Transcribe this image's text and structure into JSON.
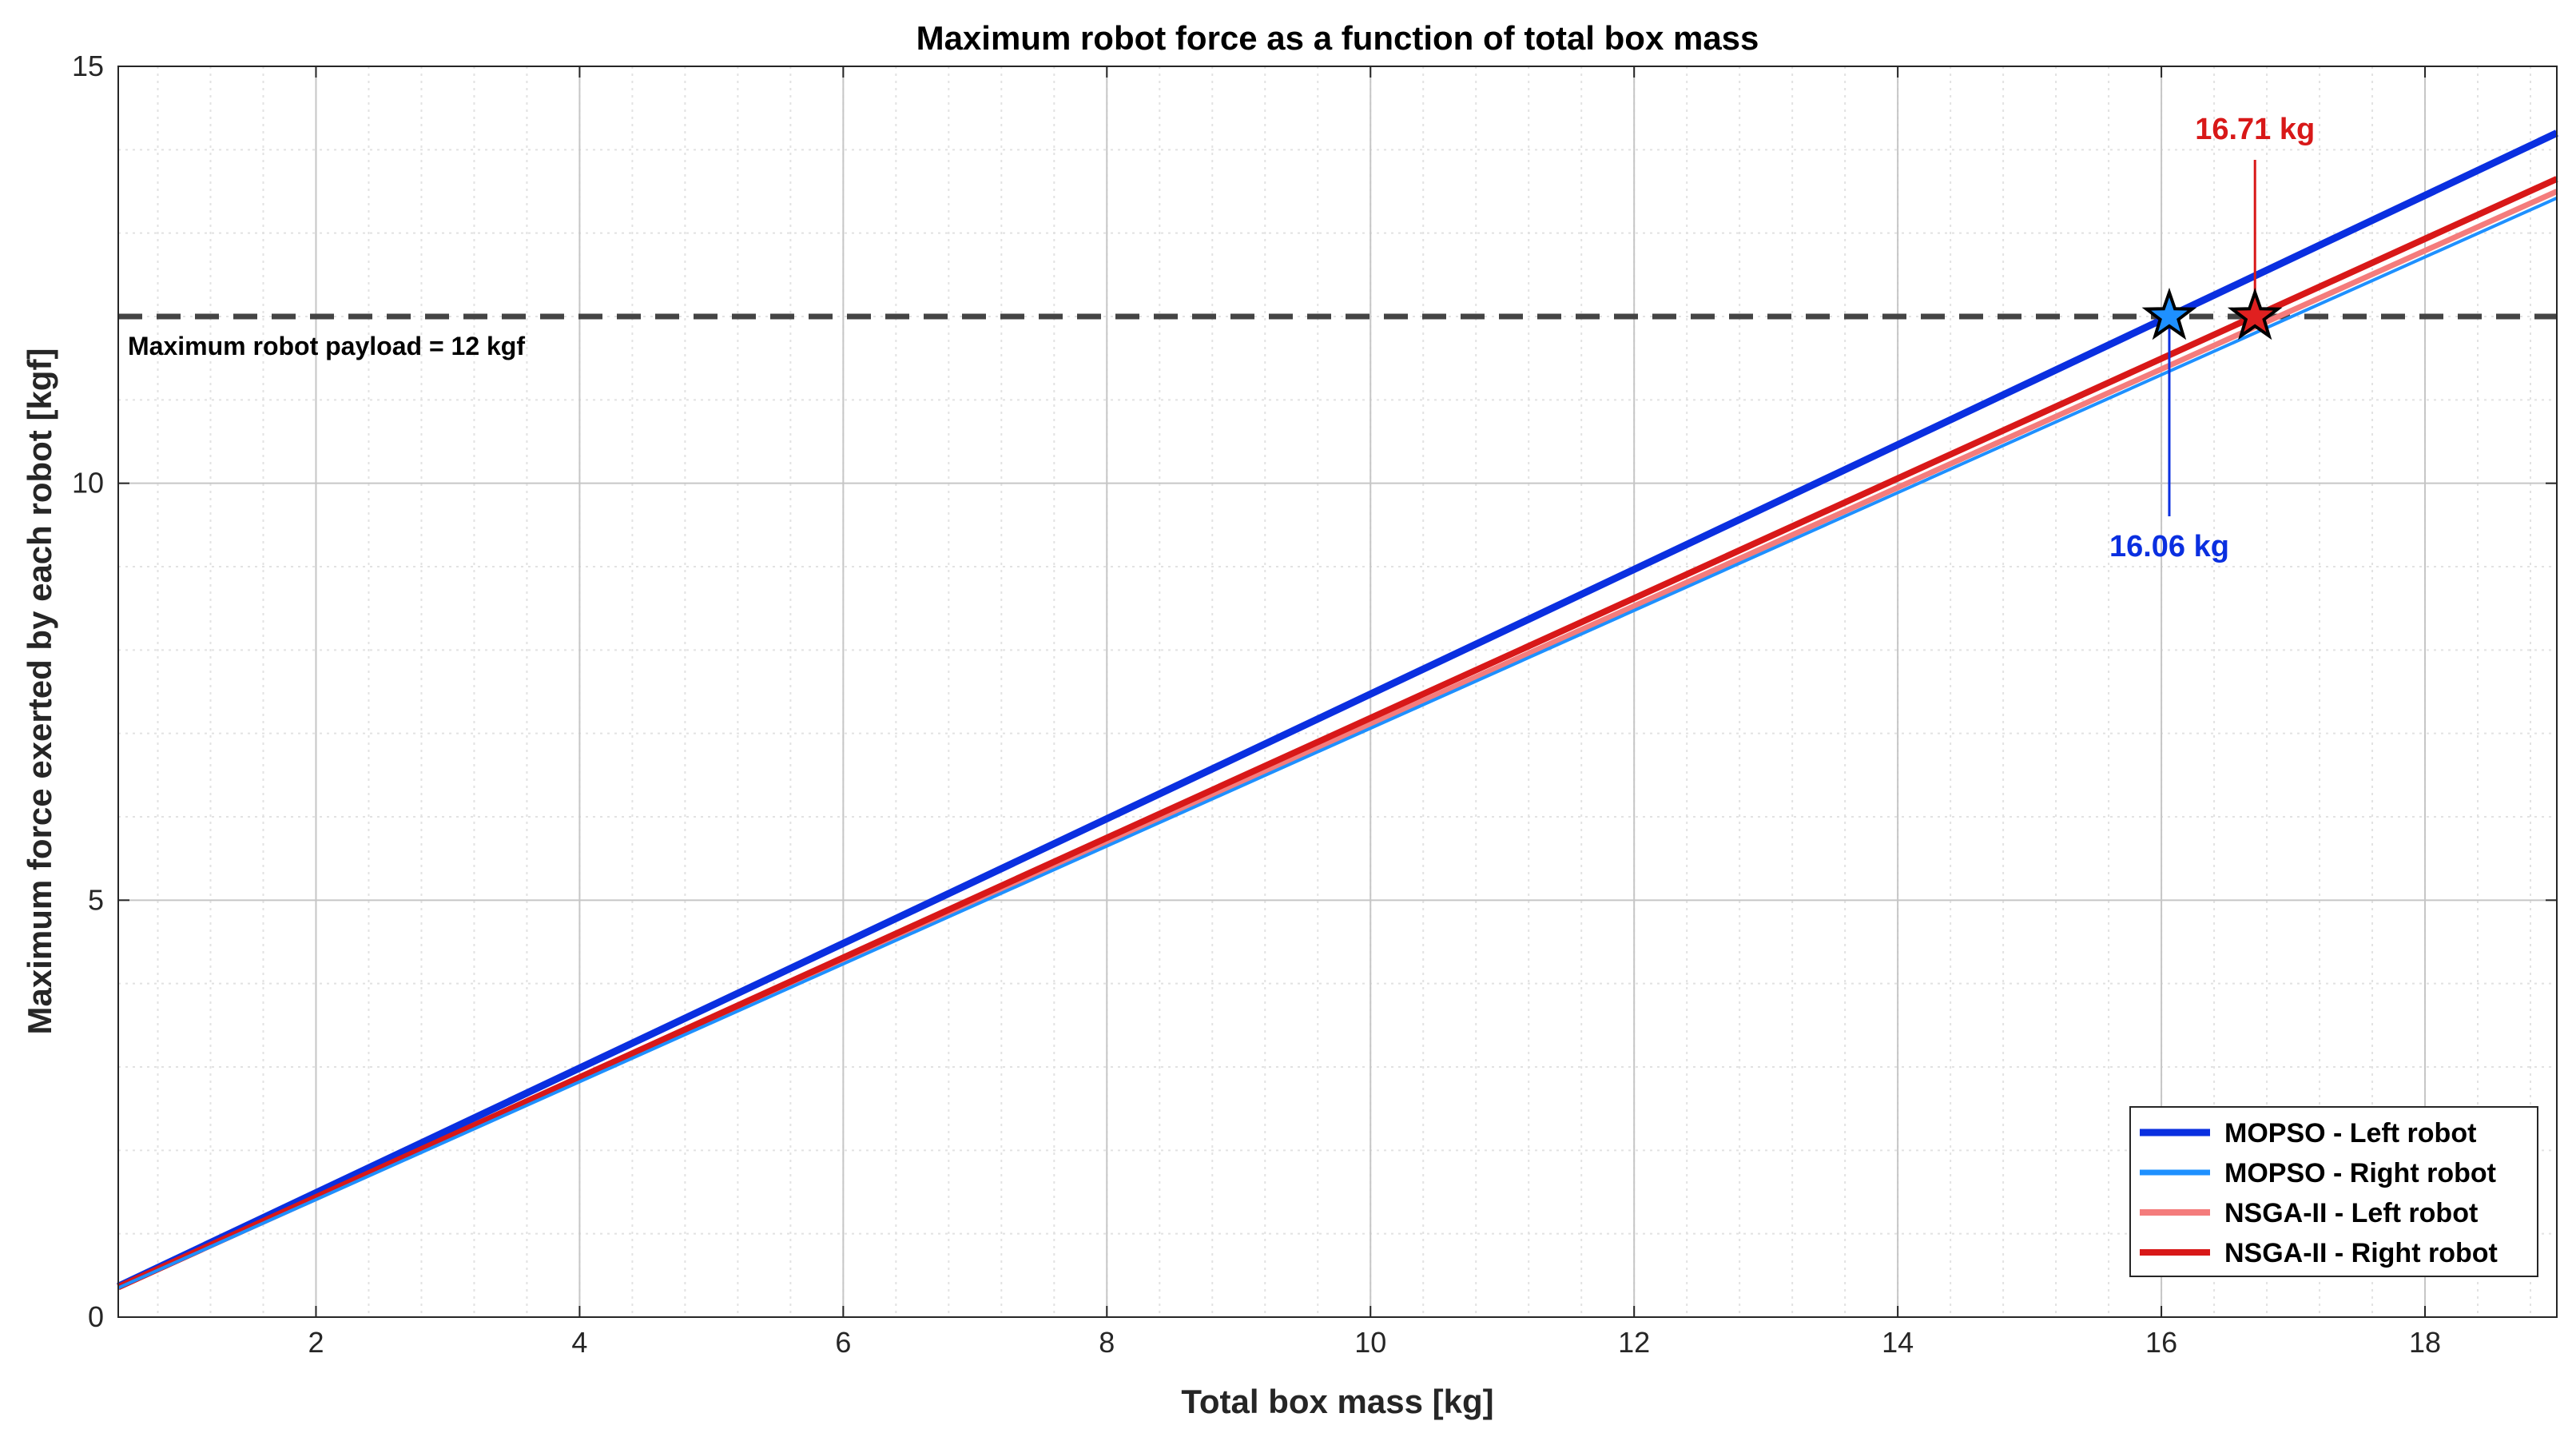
{
  "chart_data": {
    "type": "line",
    "title": "Maximum robot force as a function of total box mass",
    "xlabel": "Total box mass [kg]",
    "ylabel": "Maximum force exerted by each robot [kgf]",
    "xlim": [
      0.5,
      19
    ],
    "ylim": [
      0,
      15
    ],
    "xticks": [
      2,
      4,
      6,
      8,
      10,
      12,
      14,
      16,
      18
    ],
    "yticks": [
      0,
      5,
      10,
      15
    ],
    "grid": true,
    "minor_grid": true,
    "legend_position": "bottom-right",
    "series": [
      {
        "name": "MOPSO - Left robot",
        "color": "#0a2fe0",
        "x": [
          0.5,
          19
        ],
        "y": [
          0.37,
          14.2
        ]
      },
      {
        "name": "MOPSO - Right robot",
        "color": "#1e90ff",
        "x": [
          0.5,
          19
        ],
        "y": [
          0.35,
          13.42
        ]
      },
      {
        "name": "NSGA-II - Left robot",
        "color": "#f47c7c",
        "x": [
          0.5,
          19
        ],
        "y": [
          0.36,
          13.5
        ]
      },
      {
        "name": "NSGA-II - Right robot",
        "color": "#d81818",
        "x": [
          0.5,
          19
        ],
        "y": [
          0.36,
          13.65
        ]
      }
    ],
    "reference_line": {
      "y": 12,
      "label": "Maximum robot payload = 12 kgf",
      "color": "#444444"
    },
    "annotations": [
      {
        "text": "16.06 kg",
        "x": 16.06,
        "y": 12,
        "color": "#0a2fe0",
        "marker_color": "#1e90ff",
        "placement": "below"
      },
      {
        "text": "16.71 kg",
        "x": 16.71,
        "y": 12,
        "color": "#d81818",
        "marker_color": "#e02020",
        "placement": "above"
      }
    ]
  }
}
